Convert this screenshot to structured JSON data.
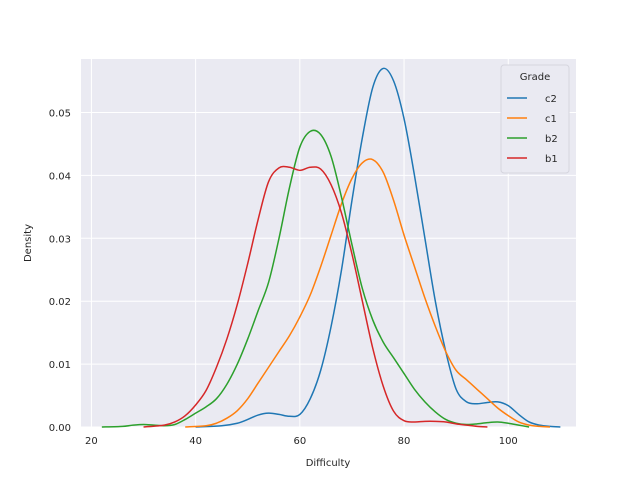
{
  "chart_data": {
    "type": "line",
    "xlabel": "Difficulty",
    "ylabel": "Density",
    "xlim": [
      18,
      113
    ],
    "ylim": [
      0,
      0.0585
    ],
    "xticks": [
      20,
      40,
      60,
      80,
      100
    ],
    "yticks": [
      0.0,
      0.01,
      0.02,
      0.03,
      0.04,
      0.05
    ],
    "ytick_labels": [
      "0.00",
      "0.01",
      "0.02",
      "0.03",
      "0.04",
      "0.05"
    ],
    "grid": true,
    "legend": {
      "title": "Grade",
      "placement": "top-right"
    },
    "series": [
      {
        "name": "c2",
        "color": "#1f77b4",
        "x": [
          40,
          45,
          48,
          50,
          52,
          54,
          56,
          58,
          60,
          62,
          64,
          66,
          68,
          70,
          72,
          74,
          76,
          78,
          80,
          82,
          84,
          86,
          88,
          90,
          92,
          94,
          96,
          98,
          100,
          102,
          104,
          106,
          108,
          110
        ],
        "y": [
          0.0,
          0.0002,
          0.0006,
          0.0012,
          0.0019,
          0.0022,
          0.002,
          0.0017,
          0.002,
          0.0045,
          0.009,
          0.016,
          0.025,
          0.036,
          0.046,
          0.054,
          0.057,
          0.055,
          0.049,
          0.04,
          0.03,
          0.02,
          0.012,
          0.006,
          0.004,
          0.0037,
          0.0039,
          0.004,
          0.0034,
          0.002,
          0.0008,
          0.0003,
          0.0001,
          0.0
        ]
      },
      {
        "name": "c1",
        "color": "#ff7f0e",
        "x": [
          38,
          42,
          44,
          46,
          48,
          50,
          52,
          54,
          56,
          58,
          60,
          62,
          64,
          66,
          68,
          70,
          72,
          74,
          76,
          78,
          80,
          82,
          84,
          86,
          88,
          90,
          92,
          94,
          96,
          98,
          100,
          102,
          104,
          106,
          108
        ],
        "y": [
          0.0,
          0.0002,
          0.0006,
          0.0014,
          0.0026,
          0.0045,
          0.007,
          0.0095,
          0.012,
          0.0145,
          0.0175,
          0.021,
          0.0255,
          0.0305,
          0.0355,
          0.0395,
          0.042,
          0.0425,
          0.0405,
          0.036,
          0.0305,
          0.0255,
          0.0205,
          0.016,
          0.012,
          0.009,
          0.0075,
          0.006,
          0.0045,
          0.003,
          0.0018,
          0.0008,
          0.0003,
          0.0001,
          0.0
        ]
      },
      {
        "name": "b2",
        "color": "#2ca02c",
        "x": [
          22,
          26,
          28,
          30,
          32,
          34,
          36,
          38,
          40,
          42,
          44,
          46,
          48,
          50,
          52,
          54,
          56,
          58,
          60,
          62,
          64,
          66,
          68,
          70,
          72,
          74,
          76,
          78,
          80,
          82,
          84,
          86,
          88,
          90,
          92,
          94,
          96,
          98,
          100,
          102,
          104
        ],
        "y": [
          0.0,
          0.0001,
          0.0003,
          0.0004,
          0.0003,
          0.0002,
          0.0004,
          0.0012,
          0.0022,
          0.0032,
          0.0045,
          0.0068,
          0.01,
          0.014,
          0.0185,
          0.023,
          0.03,
          0.038,
          0.0445,
          0.047,
          0.0465,
          0.043,
          0.0365,
          0.029,
          0.022,
          0.017,
          0.0135,
          0.011,
          0.0085,
          0.006,
          0.004,
          0.0024,
          0.0012,
          0.0006,
          0.0004,
          0.0005,
          0.0007,
          0.0008,
          0.0006,
          0.0003,
          0.0
        ]
      },
      {
        "name": "b1",
        "color": "#d62728",
        "x": [
          30,
          34,
          36,
          38,
          40,
          42,
          44,
          46,
          48,
          50,
          52,
          54,
          56,
          58,
          60,
          62,
          64,
          66,
          68,
          70,
          72,
          74,
          76,
          78,
          80,
          82,
          84,
          86,
          88,
          90,
          92,
          94,
          96
        ],
        "y": [
          0.0,
          0.0003,
          0.0008,
          0.0018,
          0.0035,
          0.0058,
          0.0095,
          0.014,
          0.0195,
          0.026,
          0.033,
          0.039,
          0.0412,
          0.0413,
          0.0408,
          0.0413,
          0.041,
          0.0385,
          0.034,
          0.0275,
          0.02,
          0.0125,
          0.0065,
          0.0025,
          0.001,
          0.0008,
          0.0009,
          0.0009,
          0.0008,
          0.0005,
          0.0003,
          0.0001,
          0.0
        ]
      }
    ]
  }
}
